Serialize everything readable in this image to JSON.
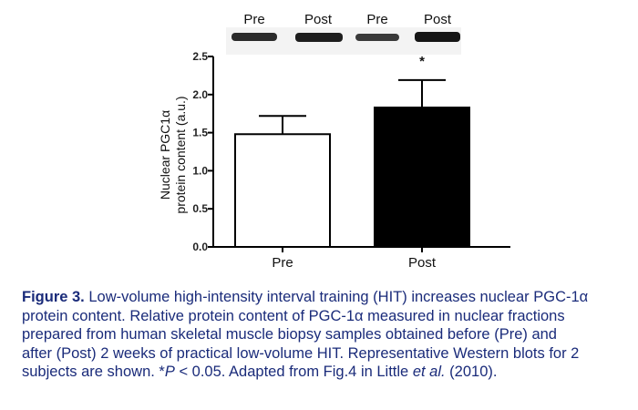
{
  "blot": {
    "lanes": [
      "Pre",
      "Post",
      "Pre",
      "Post"
    ]
  },
  "chart_data": {
    "type": "bar",
    "categories": [
      "Pre",
      "Post"
    ],
    "values": [
      1.48,
      1.83
    ],
    "errors": [
      0.24,
      0.36
    ],
    "bar_colors": [
      "#ffffff",
      "#000000"
    ],
    "ylabel_line1": "Nuclear PGC1α",
    "ylabel_line2": "protein content (a.u.)",
    "ylim": [
      0,
      2.5
    ],
    "yticks": [
      "0.0",
      "0.5",
      "1.0",
      "1.5",
      "2.0",
      "2.5"
    ],
    "significance": "*"
  },
  "caption": {
    "figure_number": "Figure 3.",
    "line1": "Low-volume high-intensity interval training (HIT) increases nuclear PGC-1α",
    "line2": "protein content. Relative protein content of PGC-1α measured in nuclear fractions",
    "line3": "prepared from human skeletal muscle biopsy samples obtained before (Pre) and",
    "line4": "after (Post) 2 weeks of practical low-volume HIT. Representative Western blots for 2",
    "line5_a": "subjects are shown. *",
    "line5_p": "P",
    "line5_b": " < 0.05. Adapted from Fig.4 in Little ",
    "line5_etal": "et al.",
    "line5_c": " (2010)."
  }
}
